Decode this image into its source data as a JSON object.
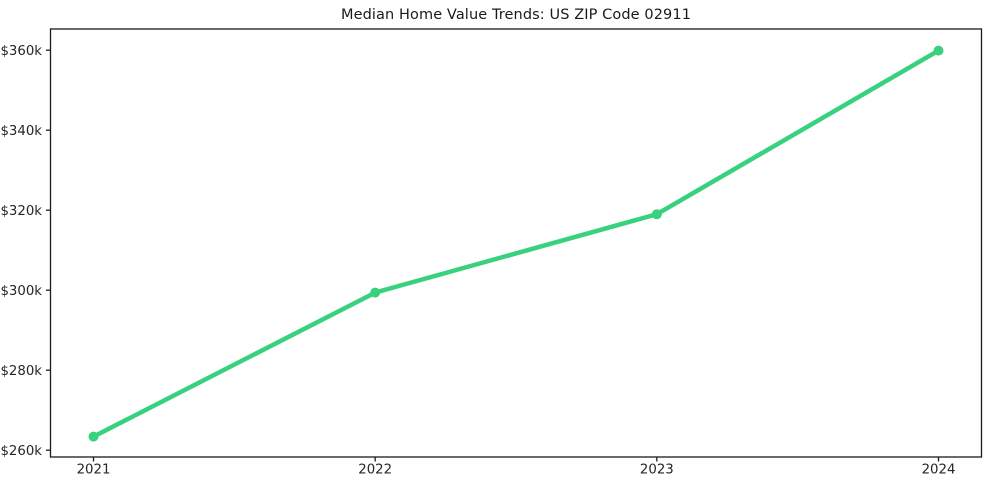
{
  "title": "Median Home Value Trends: US ZIP Code 02911",
  "colors": {
    "line": "#38d17e",
    "marker": "#38d17e",
    "spine": "#1a1a1a",
    "text": "#262626",
    "background": "#ffffff"
  },
  "chart_data": {
    "type": "line",
    "title": "Median Home Value Trends: US ZIP Code 02911",
    "categories": [
      "2021",
      "2022",
      "2023",
      "2024"
    ],
    "values": [
      263400,
      299400,
      319000,
      359900
    ],
    "y_ticks": [
      260000,
      280000,
      300000,
      320000,
      340000,
      360000
    ],
    "y_tick_labels": [
      "$260k",
      "$280k",
      "$300k",
      "$320k",
      "$340k",
      "$360k"
    ],
    "ylim": [
      258300,
      365300
    ],
    "xlabel": "",
    "ylabel": "",
    "grid": false,
    "legend": false,
    "marker": "circle",
    "line_color": "#38d17e",
    "line_width": 4.5,
    "marker_radius": 5
  }
}
